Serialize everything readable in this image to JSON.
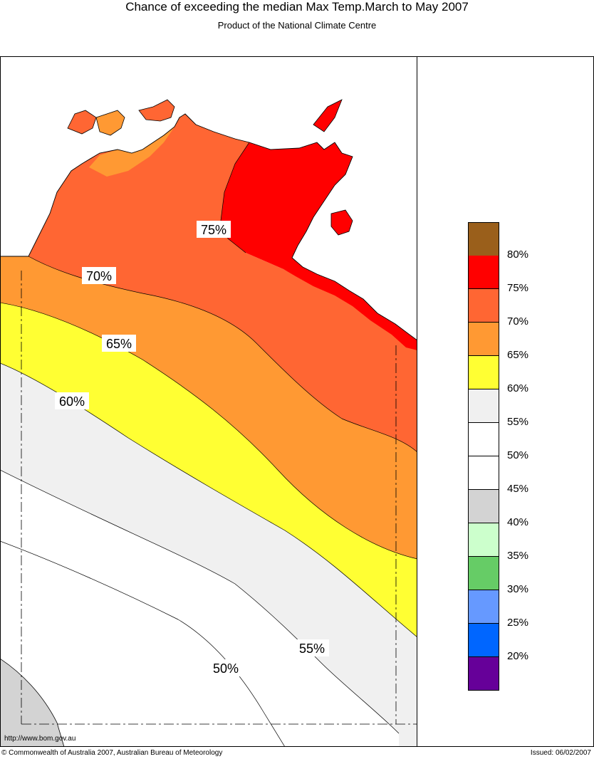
{
  "title": "Chance of exceeding the median Max Temp.March to May 2007",
  "subtitle": "Product of the National Climate Centre",
  "map_labels": {
    "p75": "75%",
    "p70": "70%",
    "p65": "65%",
    "p60": "60%",
    "p55": "55%",
    "p50": "50%"
  },
  "legend": {
    "swatches": [
      {
        "color": "#9A5F1B"
      },
      {
        "color": "#FF0000"
      },
      {
        "color": "#FF6633"
      },
      {
        "color": "#FF9933"
      },
      {
        "color": "#FFFF33"
      },
      {
        "color": "#F0F0F0"
      },
      {
        "color": "#FFFFFF"
      },
      {
        "color": "#FFFFFF"
      },
      {
        "color": "#D3D3D3"
      },
      {
        "color": "#CCFFCC"
      },
      {
        "color": "#66CC66"
      },
      {
        "color": "#6699FF"
      },
      {
        "color": "#0066FF"
      },
      {
        "color": "#660099"
      }
    ],
    "labels": [
      "80%",
      "75%",
      "70%",
      "65%",
      "60%",
      "55%",
      "50%",
      "45%",
      "40%",
      "35%",
      "30%",
      "25%",
      "20%"
    ]
  },
  "footer": {
    "url": "http://www.bom.gov.au",
    "copyright": "© Commonwealth of Australia 2007, Australian Bureau of Meteorology",
    "issued": "Issued: 06/02/2007"
  }
}
